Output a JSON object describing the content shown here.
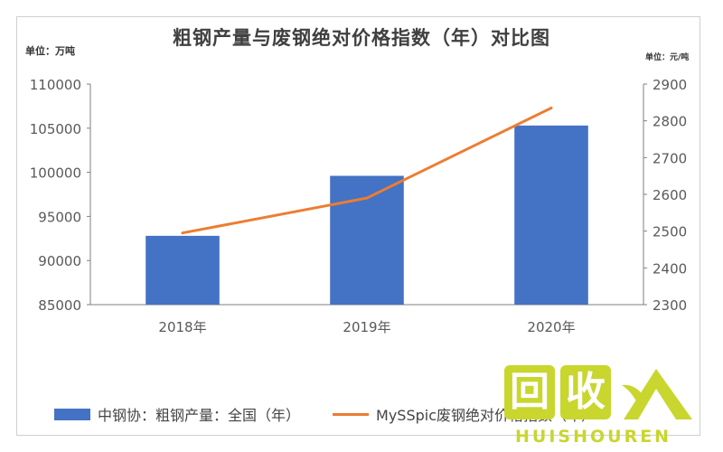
{
  "title": "粗钢产量与废钢绝对价格指数（年）对比图",
  "unit_left": "单位：万吨",
  "unit_right": "单位：元/吨",
  "legend": {
    "bar": "中钢协：粗钢产量：全国（年）",
    "line": "MySSpic废钢绝对价格指数（年）"
  },
  "watermark": {
    "chars": [
      "回",
      "收"
    ],
    "text": "HUISHOUREN",
    "color": "#c8d62e"
  },
  "colors": {
    "bar": "#4472C4",
    "line": "#ED7D31",
    "axis": "#7f7f7f",
    "tick": "#595959"
  },
  "chart_data": {
    "type": "bar",
    "categories": [
      "2018年",
      "2019年",
      "2020年"
    ],
    "series": [
      {
        "name": "中钢协：粗钢产量：全国（年）",
        "type": "bar",
        "axis": "left",
        "values": [
          92800,
          99600,
          105300
        ]
      },
      {
        "name": "MySSpic废钢绝对价格指数（年）",
        "type": "line",
        "axis": "right",
        "values": [
          2495,
          2590,
          2835
        ]
      }
    ],
    "y_left": {
      "min": 85000,
      "max": 110000,
      "ticks": [
        "85000",
        "90000",
        "95000",
        "100000",
        "105000",
        "110000"
      ]
    },
    "y_right": {
      "min": 2300,
      "max": 2900,
      "ticks": [
        "2300",
        "2400",
        "2500",
        "2600",
        "2700",
        "2800",
        "2900"
      ]
    },
    "grid": false,
    "legend_position": "bottom"
  }
}
